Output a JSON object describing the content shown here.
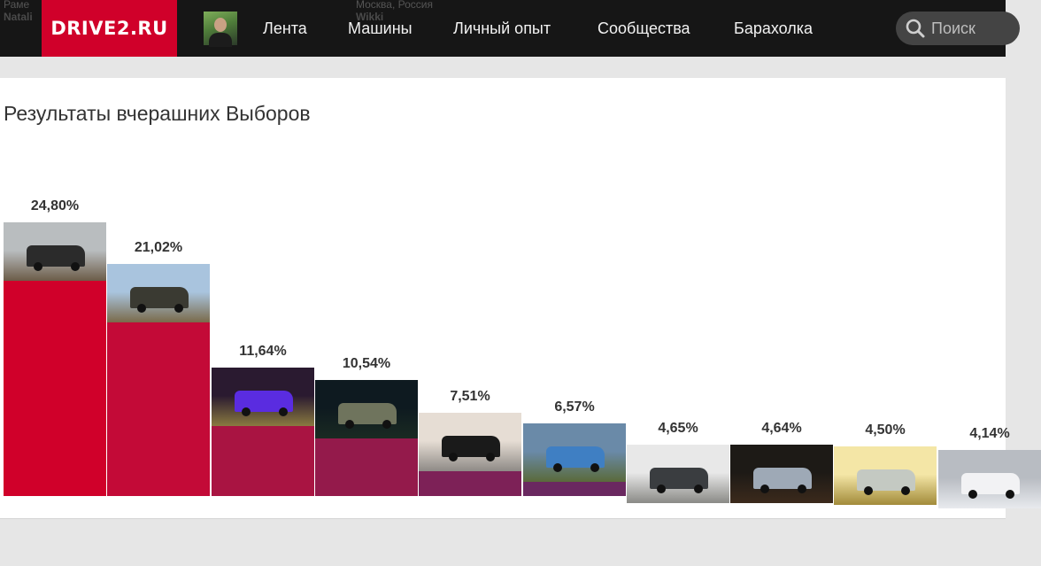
{
  "header": {
    "logo": "DRIVE2.RU",
    "nav": [
      "Лента",
      "Машины",
      "Личный опыт",
      "Сообщества",
      "Барахолка"
    ],
    "search_placeholder": "Поиск",
    "ghost": {
      "left_top": "Раме",
      "left_bottom": "Natali",
      "mid_top": "Москва, Россия",
      "mid_bottom": "Wikki"
    }
  },
  "colors": {
    "header_bg": "#161616",
    "logo_bg": "#d0002a"
  },
  "chart_data": {
    "type": "bar",
    "title": "Результаты вчерашних Выборов",
    "ylim": [
      0,
      30
    ],
    "grid": false,
    "values": [
      24.8,
      21.02,
      11.64,
      10.54,
      7.51,
      6.57,
      4.65,
      4.64,
      4.5,
      4.14
    ],
    "labels": [
      "24,80%",
      "21,02%",
      "11,64%",
      "10,54%",
      "7,51%",
      "6,57%",
      "4,65%",
      "4,64%",
      "4,50%",
      "4,14%"
    ],
    "colors": [
      "#d0002a",
      "#c30a37",
      "#a91442",
      "#941a4b",
      "#7d2157",
      "#6a2860",
      "#552c6c",
      "#473477",
      "#354482",
      "#1f5aa8"
    ],
    "photos": [
      {
        "sky": "#b9bdbf",
        "ground": "#6c5c48",
        "car": "#2b2b2b"
      },
      {
        "sky": "#a9c4de",
        "ground": "#7a6a4a",
        "car": "#3a3a32"
      },
      {
        "sky": "#2a1a30",
        "ground": "#8a7a40",
        "car": "#5a2ce0"
      },
      {
        "sky": "#0e1a20",
        "ground": "#1a2a22",
        "car": "#6f745d"
      },
      {
        "sky": "#e6ddd4",
        "ground": "#8e8a86",
        "car": "#1a1a1a"
      },
      {
        "sky": "#6a8aa8",
        "ground": "#5a6a3a",
        "car": "#3f7fc3"
      },
      {
        "sky": "#e8e8e8",
        "ground": "#8a8a86",
        "car": "#3a3d40"
      },
      {
        "sky": "#1d1a16",
        "ground": "#3c2a1c",
        "car": "#9ea9b6"
      },
      {
        "sky": "#f4e6a6",
        "ground": "#a28b3a",
        "car": "#c4c9c2"
      },
      {
        "sky": "#b8bcc2",
        "ground": "#e8eaee",
        "car": "#f2f2f4"
      }
    ]
  }
}
